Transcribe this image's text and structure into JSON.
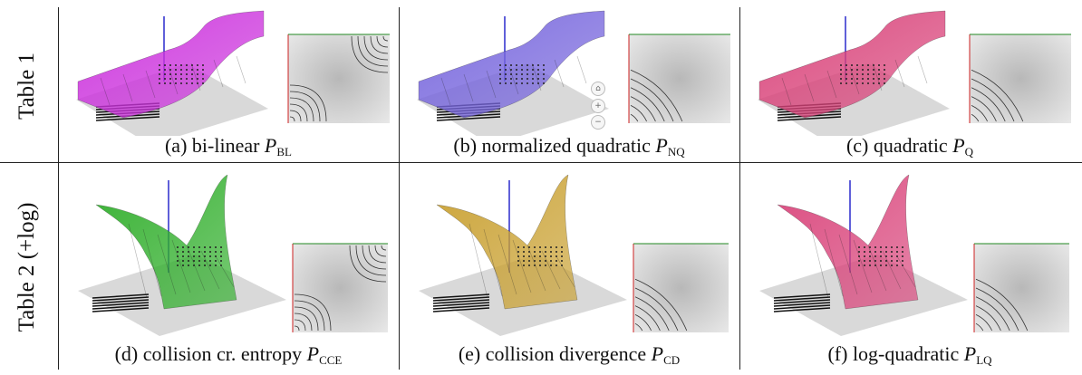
{
  "rows": [
    {
      "label": "Table 1"
    },
    {
      "label": "Table 2   (+log)"
    }
  ],
  "cells": [
    {
      "id": "a",
      "prefix": "(a) bi-linear ",
      "symbol": "P",
      "subscript": "BL",
      "surface_color": "#cc33dd"
    },
    {
      "id": "b",
      "prefix": "(b) normalized quadratic ",
      "symbol": "P",
      "subscript": "NQ",
      "surface_color": "#7766dd"
    },
    {
      "id": "c",
      "prefix": "(c) quadratic ",
      "symbol": "P",
      "subscript": "Q",
      "surface_color": "#d9437a"
    },
    {
      "id": "d",
      "prefix": "(d) collision cr. entropy ",
      "symbol": "P",
      "subscript": "CCE",
      "surface_color": "#2fae2a"
    },
    {
      "id": "e",
      "prefix": "(e) collision divergence ",
      "symbol": "P",
      "subscript": "CD",
      "surface_color": "#c9a030"
    },
    {
      "id": "f",
      "prefix": "(f) log-quadratic ",
      "symbol": "P",
      "subscript": "LQ",
      "surface_color": "#d9437a"
    }
  ],
  "viewer_controls": [
    "home-icon",
    "zoom-in-icon",
    "zoom-out-icon"
  ]
}
